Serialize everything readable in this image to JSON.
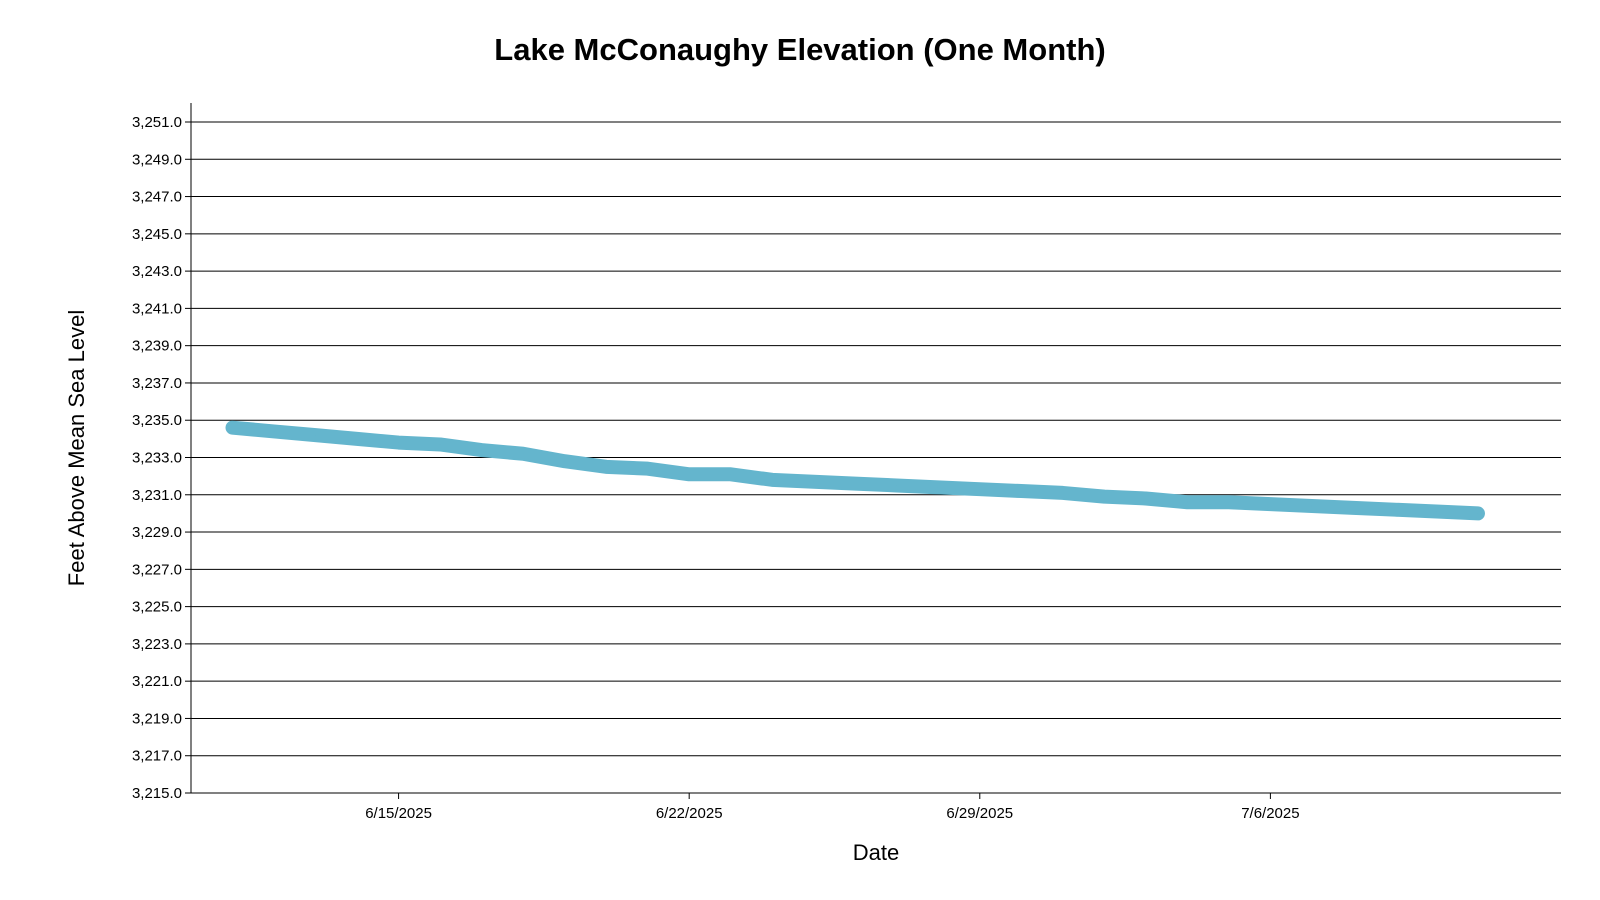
{
  "chart_data": {
    "type": "line",
    "title": "Lake McConaughy Elevation (One Month)",
    "xlabel": "Date",
    "ylabel": "Feet Above Mean Sea Level",
    "ylim": [
      3215.0,
      3251.0
    ],
    "xlim": [
      "2025-06-10",
      "2025-07-13"
    ],
    "y_ticks": [
      "3,215.0",
      "3,217.0",
      "3,219.0",
      "3,221.0",
      "3,223.0",
      "3,225.0",
      "3,227.0",
      "3,229.0",
      "3,231.0",
      "3,233.0",
      "3,235.0",
      "3,237.0",
      "3,239.0",
      "3,241.0",
      "3,243.0",
      "3,245.0",
      "3,247.0",
      "3,249.0",
      "3,251.0"
    ],
    "y_tick_values": [
      3215,
      3217,
      3219,
      3221,
      3223,
      3225,
      3227,
      3229,
      3231,
      3233,
      3235,
      3237,
      3239,
      3241,
      3243,
      3245,
      3247,
      3249,
      3251
    ],
    "x_ticks": [
      "6/15/2025",
      "6/22/2025",
      "6/29/2025",
      "7/6/2025"
    ],
    "x_tick_values": [
      "2025-06-15",
      "2025-06-22",
      "2025-06-29",
      "2025-07-06"
    ],
    "grid": true,
    "legend": "none",
    "line_color": "#64b5cd",
    "series": [
      {
        "x": [
          "2025-06-11",
          "2025-06-12",
          "2025-06-13",
          "2025-06-14",
          "2025-06-15",
          "2025-06-16",
          "2025-06-17",
          "2025-06-18",
          "2025-06-19",
          "2025-06-20",
          "2025-06-21",
          "2025-06-22",
          "2025-06-23",
          "2025-06-24",
          "2025-06-25",
          "2025-06-26",
          "2025-06-27",
          "2025-06-28",
          "2025-06-29",
          "2025-06-30",
          "2025-07-01",
          "2025-07-02",
          "2025-07-03",
          "2025-07-04",
          "2025-07-05",
          "2025-07-06",
          "2025-07-07",
          "2025-07-08",
          "2025-07-09",
          "2025-07-10",
          "2025-07-11"
        ],
        "values": [
          3234.6,
          3234.4,
          3234.2,
          3234.0,
          3233.8,
          3233.7,
          3233.4,
          3233.2,
          3232.8,
          3232.5,
          3232.4,
          3232.1,
          3232.1,
          3231.8,
          3231.7,
          3231.6,
          3231.5,
          3231.4,
          3231.3,
          3231.2,
          3231.1,
          3230.9,
          3230.8,
          3230.6,
          3230.6,
          3230.5,
          3230.4,
          3230.3,
          3230.2,
          3230.1,
          3230.0
        ]
      }
    ]
  }
}
